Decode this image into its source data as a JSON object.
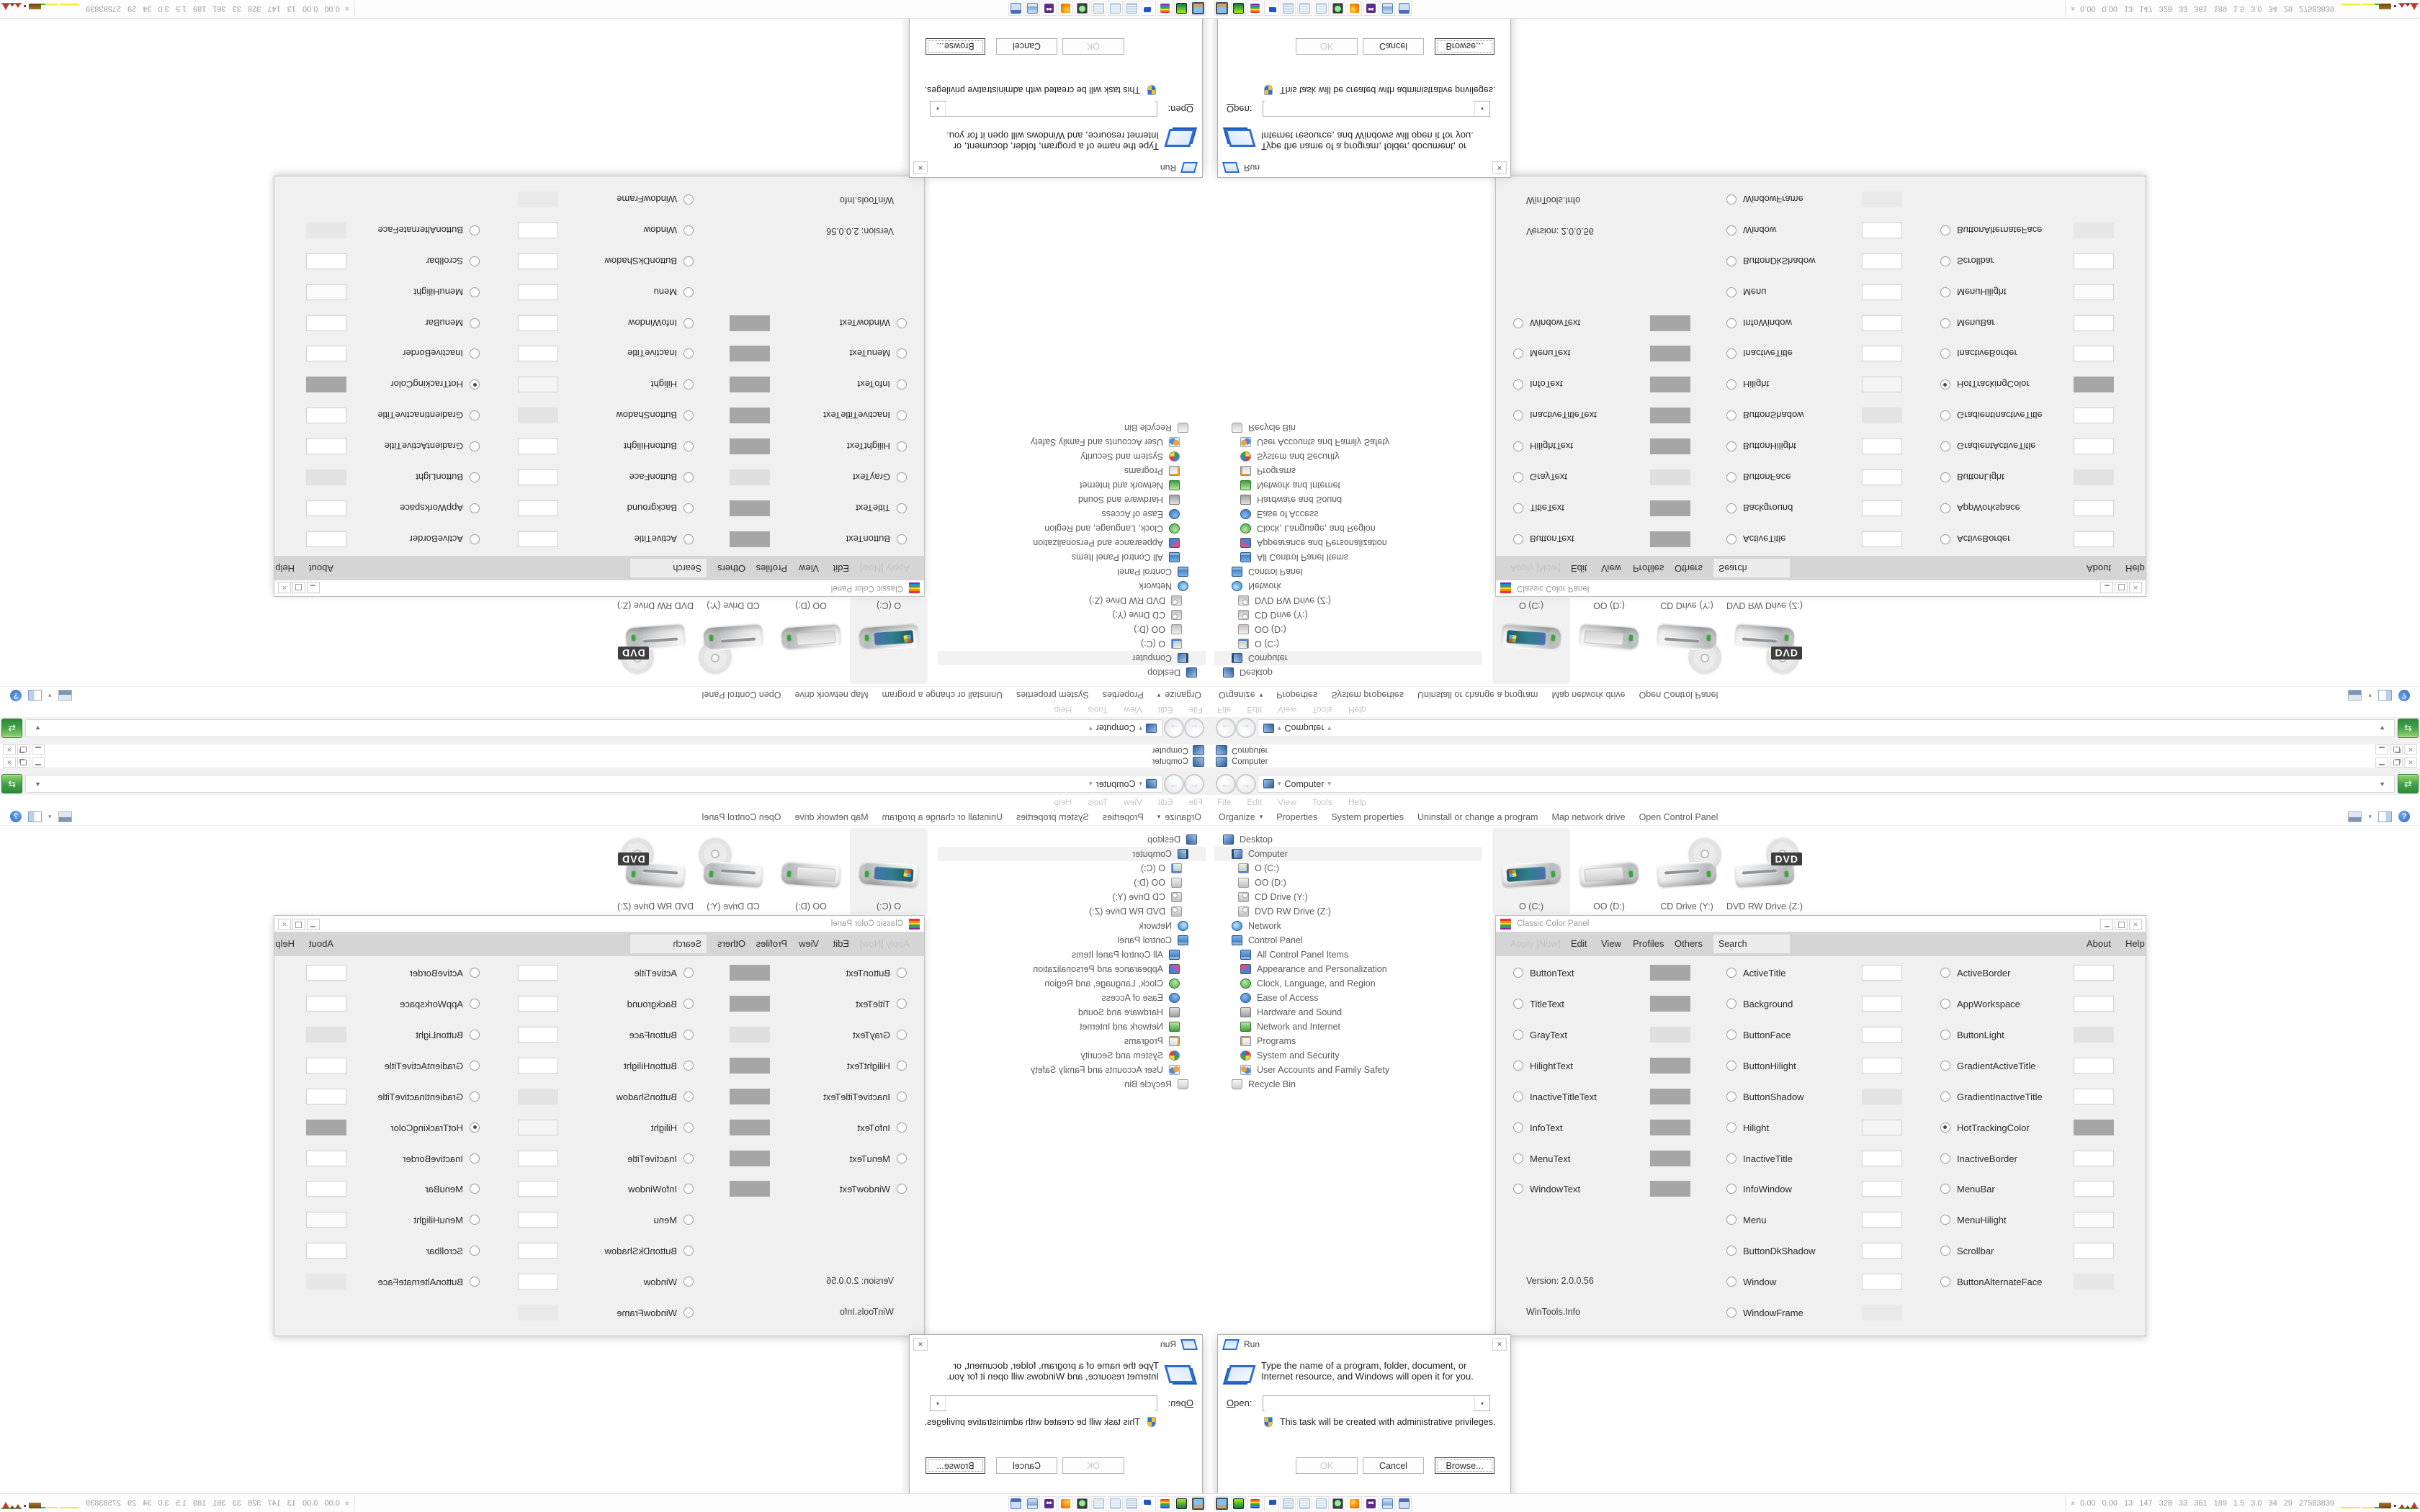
{
  "glyphs": {
    "close": "✕",
    "back": "←",
    "forward": "→",
    "caret_down": "▾",
    "dropdown_down": "▼",
    "collapse_chevron": "«",
    "help": "?",
    "refresh": "⇄"
  },
  "explorer": {
    "title": "Computer",
    "breadcrumb": "Computer",
    "menu": [
      "File",
      "Edit",
      "View",
      "Tools",
      "Help"
    ],
    "toolbar": {
      "organize": "Organize",
      "items": [
        "Properties",
        "System properties",
        "Uninstall or change a program",
        "Map network drive",
        "Open Control Panel"
      ]
    },
    "tree": [
      {
        "label": "Desktop"
      },
      {
        "label": "Computer",
        "selected": true
      },
      {
        "label": "O (C:)"
      },
      {
        "label": "OO (D:)"
      },
      {
        "label": "CD Drive (Y:)"
      },
      {
        "label": "DVD RW Drive (Z:)"
      },
      {
        "label": "Network"
      },
      {
        "label": "Control Panel"
      },
      {
        "label": "All Control Panel Items"
      },
      {
        "label": "Appearance and Personalization"
      },
      {
        "label": "Clock, Language, and Region"
      },
      {
        "label": "Ease of Access"
      },
      {
        "label": "Hardware and Sound"
      },
      {
        "label": "Network and Internet"
      },
      {
        "label": "Programs"
      },
      {
        "label": "System and Security"
      },
      {
        "label": "User Accounts and Family Safety"
      },
      {
        "label": "Recycle Bin"
      }
    ],
    "drives": [
      {
        "label": "O (C:)",
        "selected": true
      },
      {
        "label": "OO (D:)"
      },
      {
        "label": "CD Drive (Y:)"
      },
      {
        "label": "DVD RW Drive (Z:)",
        "badge": "DVD"
      }
    ]
  },
  "color_panel": {
    "title": "Classic Color Panel",
    "menu": {
      "apply": "Apply [Now]",
      "edit": "Edit",
      "view": "View",
      "profiles": "Profiles",
      "others": "Others",
      "search_value": "Search",
      "about": "About",
      "help": "Help"
    },
    "version": "Version: 2.0.0.56",
    "credit": "WinTools.Info",
    "grid": [
      [
        {
          "label": "ButtonText",
          "swatch": "#a6a6a6"
        },
        {
          "label": "ActiveTitle",
          "swatch": "#ffffff"
        },
        {
          "label": "ActiveBorder",
          "swatch": "#ffffff"
        }
      ],
      [
        {
          "label": "TitleText",
          "swatch": "#a6a6a6"
        },
        {
          "label": "Background",
          "swatch": "#ffffff"
        },
        {
          "label": "AppWorkspace",
          "swatch": "#ffffff"
        }
      ],
      [
        {
          "label": "GrayText",
          "swatch": "#dfdfdf"
        },
        {
          "label": "ButtonFace",
          "swatch": "#ffffff"
        },
        {
          "label": "ButtonLight",
          "swatch": "#e1e1e1"
        }
      ],
      [
        {
          "label": "HilightText",
          "swatch": "#a6a6a6"
        },
        {
          "label": "ButtonHilight",
          "swatch": "#ffffff"
        },
        {
          "label": "GradientActiveTitle",
          "swatch": "#ffffff"
        }
      ],
      [
        {
          "label": "InactiveTitleText",
          "swatch": "#a6a6a6"
        },
        {
          "label": "ButtonShadow",
          "swatch": "#e3e3e3"
        },
        {
          "label": "GradientInactiveTitle",
          "swatch": "#ffffff"
        }
      ],
      [
        {
          "label": "InfoText",
          "swatch": "#a6a6a6"
        },
        {
          "label": "Hilight",
          "swatch": "#f5f5f5"
        },
        {
          "label": "HotTrackingColor",
          "swatch": "#a6a6a6",
          "selected": true
        }
      ],
      [
        {
          "label": "MenuText",
          "swatch": "#a6a6a6"
        },
        {
          "label": "InactiveTitle",
          "swatch": "#ffffff"
        },
        {
          "label": "InactiveBorder",
          "swatch": "#ffffff"
        }
      ],
      [
        {
          "label": "WindowText",
          "swatch": "#a6a6a6"
        },
        {
          "label": "InfoWindow",
          "swatch": "#ffffff"
        },
        {
          "label": "MenuBar",
          "swatch": "#ffffff"
        }
      ],
      [
        null,
        {
          "label": "Menu",
          "swatch": "#ffffff"
        },
        {
          "label": "MenuHilight",
          "swatch": "#fafafa"
        }
      ],
      [
        null,
        {
          "label": "ButtonDkShadow",
          "swatch": "#ffffff"
        },
        {
          "label": "Scrollbar",
          "swatch": "#ffffff"
        }
      ],
      [
        null,
        {
          "label": "Window",
          "swatch": "#ffffff"
        },
        {
          "label": "ButtonAlternateFace",
          "swatch": "#e7e7e7"
        }
      ],
      [
        null,
        {
          "label": "WindowFrame",
          "swatch": "#e9e9e9"
        },
        null
      ]
    ]
  },
  "run_dialog": {
    "title": "Run",
    "message": "Type the name of a program, folder, document, or Internet resource, and Windows will open it for you.",
    "open_label": "Open:",
    "open_value": "",
    "admin_note": "This task will be created with administrative privileges.",
    "buttons": {
      "ok": "OK",
      "cancel": "Cancel",
      "browse": "Browse..."
    }
  },
  "taskbar": {
    "icons": [
      "display-photo-icon",
      "handheld-device-icon",
      "rainbow-panel-icon",
      "floppy-64-icon",
      "scroll-icon",
      "notepad-icon",
      "notepad-icon-2",
      "green-screen-monitor-icon",
      "firefox-icon",
      "owl-icon",
      "computer-monitor-icon",
      "window-frame-icon"
    ],
    "stats": [
      "0.00",
      "0.00",
      "13",
      "147",
      "328",
      "33",
      "361",
      "189",
      "1.5",
      "3.0",
      "34",
      "29",
      "27583839"
    ]
  },
  "colors": {
    "go_button_green": "#3fa047",
    "swatch_gray": "#a6a6a6",
    "menu_band_gray": "#d5d5d5",
    "meter_yellow": "#f0ec2e",
    "meter_green": "#3fae49",
    "meter_brown": "#8a5a1e",
    "meter_purple": "#7b2d8b",
    "meter_red": "#c0392b"
  }
}
